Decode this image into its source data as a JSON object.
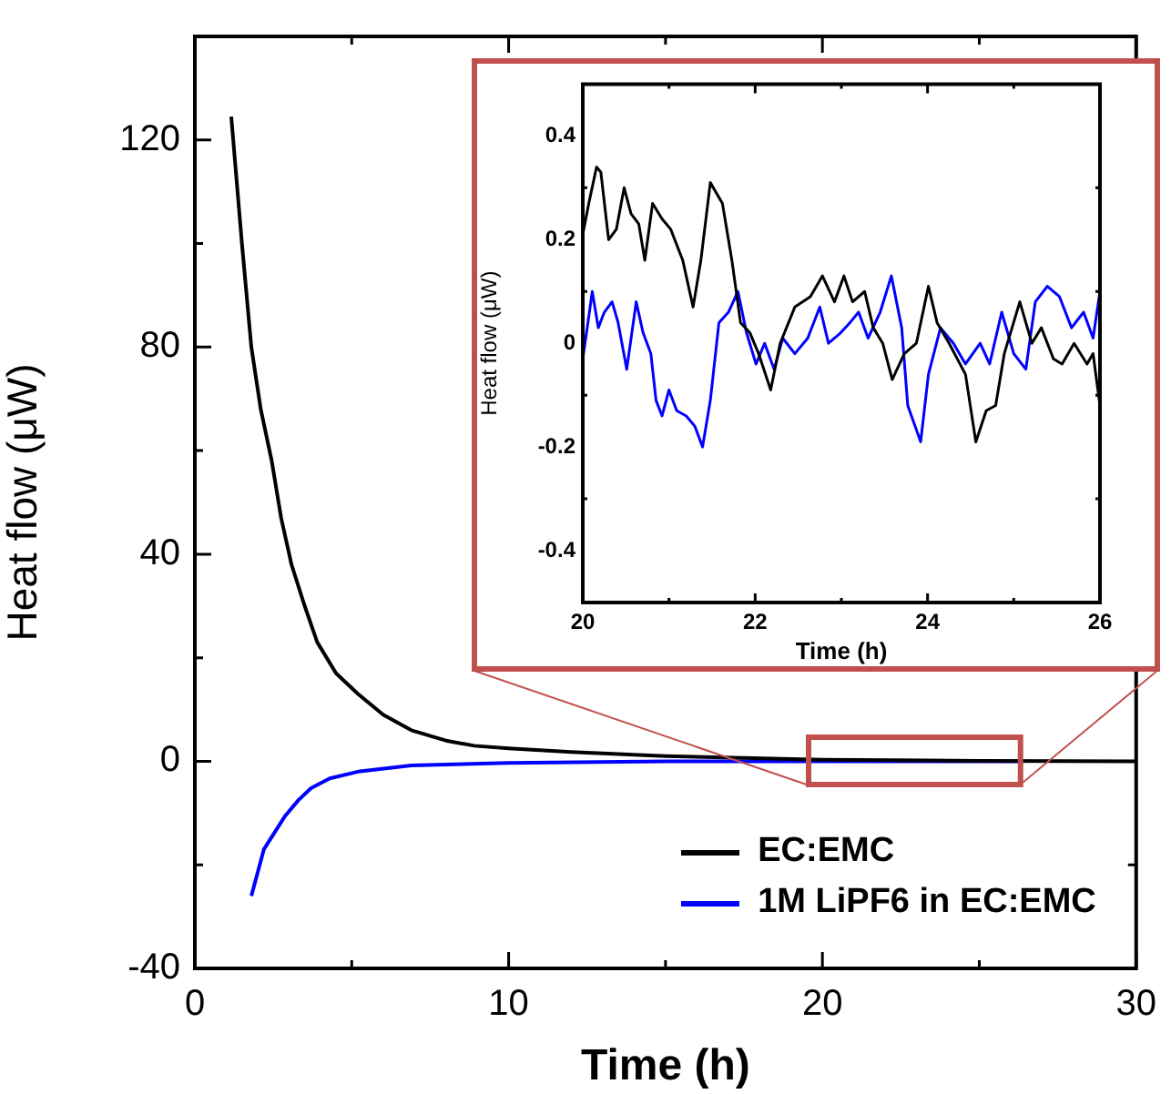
{
  "chart_data": [
    {
      "type": "line",
      "xlabel": "Time (h)",
      "ylabel": "Heat flow (μW)",
      "xlim": [
        0,
        30
      ],
      "ylim": [
        -40,
        140
      ],
      "xticks": [
        0,
        {
          "value": 5,
          "label": null
        },
        10,
        {
          "value": 15,
          "label": null
        },
        20,
        {
          "value": 25,
          "label": null
        },
        30
      ],
      "yticks": [
        -40,
        {
          "value": -20,
          "label": null
        },
        0,
        {
          "value": 20,
          "label": null
        },
        40,
        {
          "value": 60,
          "label": null
        },
        80,
        {
          "value": 100,
          "label": null
        },
        120
      ],
      "grid": false,
      "legend": "bottom right",
      "marker": "none",
      "line_style": "solid",
      "series": [
        {
          "name": "EC:EMC",
          "color": "#000000",
          "x": [
            1.16,
            1.5,
            1.8,
            2.1,
            2.45,
            2.75,
            3.08,
            3.5,
            3.9,
            4.5,
            5.2,
            6,
            6.9,
            8,
            8.9,
            10,
            12,
            15,
            20,
            25,
            30
          ],
          "values": [
            124.5,
            100,
            80,
            68,
            58,
            47,
            38,
            30,
            23,
            17,
            13,
            9,
            6,
            4,
            3,
            2.5,
            1.8,
            1,
            0.3,
            0.1,
            0
          ]
        },
        {
          "name": "1M LiPF6 in EC:EMC",
          "color": "#0000ff",
          "x": [
            1.8,
            2.2,
            2.86,
            3.3,
            3.7,
            4.3,
            5.2,
            6.9,
            10,
            15,
            26.3
          ],
          "values": [
            -26,
            -17,
            -10.7,
            -7.5,
            -5.2,
            -3.3,
            -2,
            -0.8,
            -0.3,
            0,
            0
          ]
        }
      ]
    },
    {
      "type": "line",
      "xlabel": "Time (h)",
      "ylabel": "Heat flow (μW)",
      "xlim": [
        20,
        26
      ],
      "ylim": [
        -0.5,
        0.5
      ],
      "xticks": [
        20,
        {
          "value": 21,
          "label": null
        },
        22,
        {
          "value": 23,
          "label": null
        },
        24,
        {
          "value": 25,
          "label": null
        },
        26
      ],
      "yticks": [
        {
          "value": -0.5,
          "label": null
        },
        -0.4,
        {
          "value": -0.3,
          "label": null
        },
        -0.2,
        {
          "value": -0.1,
          "label": null
        },
        0,
        {
          "value": 0.1,
          "label": null
        },
        0.2,
        {
          "value": 0.3,
          "label": null
        },
        0.4,
        {
          "value": 0.5,
          "label": null
        }
      ],
      "grid": false,
      "legend": false,
      "marker": "none",
      "line_style": "solid",
      "series": [
        {
          "color": "#000000",
          "x": [
            20,
            20.07,
            20.16,
            20.21,
            20.3,
            20.39,
            20.48,
            20.56,
            20.65,
            20.72,
            20.81,
            20.92,
            21.02,
            21.16,
            21.28,
            21.37,
            21.48,
            21.62,
            21.73,
            21.83,
            21.94,
            22.04,
            22.18,
            22.29,
            22.46,
            22.64,
            22.78,
            22.92,
            23.03,
            23.13,
            23.27,
            23.37,
            23.48,
            23.59,
            23.73,
            23.87,
            24.01,
            24.11,
            24.25,
            24.44,
            24.56,
            24.68,
            24.79,
            24.89,
            25.07,
            25.21,
            25.32,
            25.46,
            25.56,
            25.7,
            25.85,
            25.92,
            26
          ],
          "values": [
            0.21,
            0.27,
            0.34,
            0.33,
            0.2,
            0.22,
            0.3,
            0.25,
            0.23,
            0.16,
            0.27,
            0.24,
            0.22,
            0.16,
            0.07,
            0.16,
            0.31,
            0.27,
            0.16,
            0.04,
            0.02,
            -0.02,
            -0.09,
            0,
            0.07,
            0.09,
            0.13,
            0.08,
            0.13,
            0.08,
            0.1,
            0.03,
            0,
            -0.07,
            -0.02,
            0,
            0.11,
            0.04,
            0,
            -0.06,
            -0.19,
            -0.13,
            -0.12,
            -0.02,
            0.08,
            0,
            0.03,
            -0.03,
            -0.04,
            0,
            -0.04,
            -0.02,
            -0.12
          ]
        },
        {
          "color": "#0000ff",
          "x": [
            20,
            20.06,
            20.11,
            20.18,
            20.25,
            20.34,
            20.41,
            20.51,
            20.62,
            20.7,
            20.79,
            20.85,
            20.92,
            21,
            21.09,
            21.2,
            21.3,
            21.39,
            21.48,
            21.58,
            21.69,
            21.8,
            21.9,
            22.01,
            22.11,
            22.22,
            22.32,
            22.46,
            22.61,
            22.75,
            22.85,
            22.99,
            23.1,
            23.2,
            23.31,
            23.45,
            23.58,
            23.7,
            23.77,
            23.92,
            24.01,
            24.15,
            24.3,
            24.44,
            24.61,
            24.72,
            24.86,
            25,
            25.14,
            25.25,
            25.39,
            25.53,
            25.67,
            25.81,
            25.92,
            26
          ],
          "values": [
            -0.03,
            0.04,
            0.1,
            0.03,
            0.06,
            0.08,
            0.04,
            -0.05,
            0.08,
            0.02,
            -0.02,
            -0.11,
            -0.14,
            -0.09,
            -0.13,
            -0.14,
            -0.16,
            -0.2,
            -0.11,
            0.04,
            0.06,
            0.1,
            0.02,
            -0.04,
            0,
            -0.05,
            0.01,
            -0.02,
            0.01,
            0.07,
            0,
            0.02,
            0.04,
            0.06,
            0.01,
            0.06,
            0.13,
            0.03,
            -0.12,
            -0.19,
            -0.06,
            0.03,
            0,
            -0.04,
            0,
            -0.04,
            0.06,
            -0.02,
            -0.05,
            0.08,
            0.11,
            0.09,
            0.03,
            0.06,
            0.01,
            0.1
          ]
        }
      ]
    }
  ]
}
